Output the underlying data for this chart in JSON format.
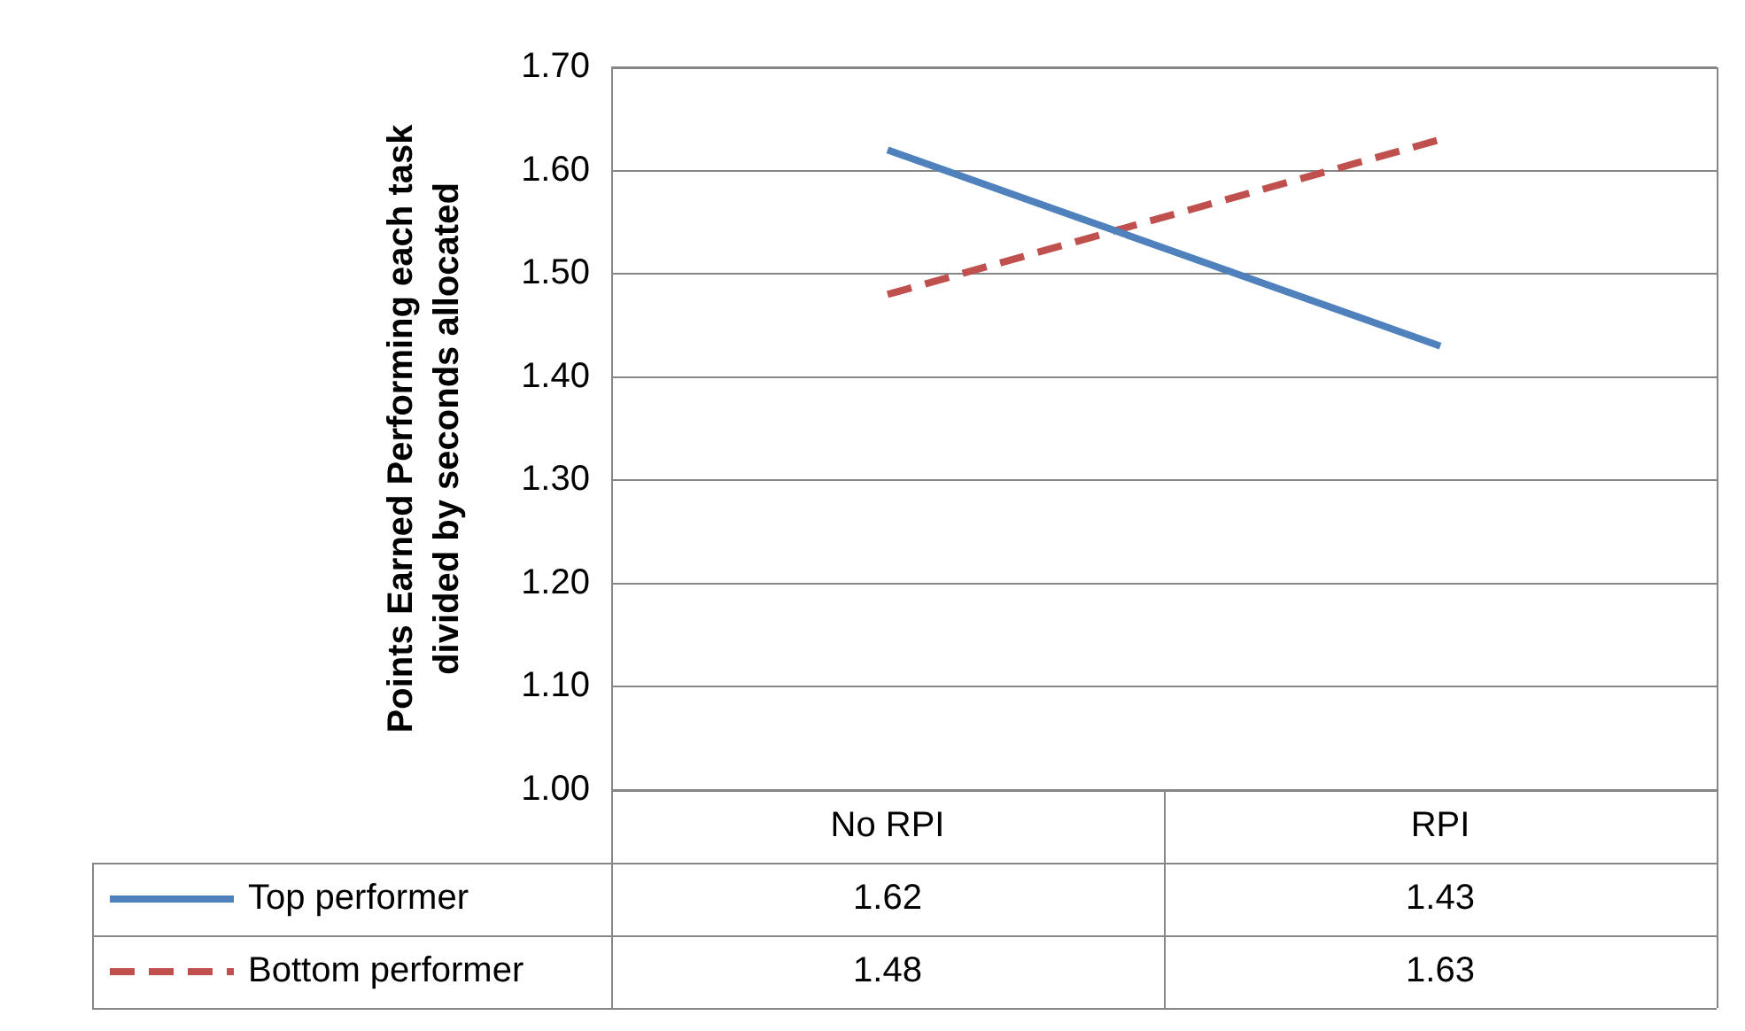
{
  "chart_data": {
    "type": "line",
    "ylabel": "Points Earned Performing each task divided by seconds allocated",
    "categories": [
      "No RPI",
      "RPI"
    ],
    "series": [
      {
        "name": "Top performer",
        "color": "#4f81bd",
        "values": [
          1.62,
          1.43
        ],
        "line_style": "solid"
      },
      {
        "name": "Bottom performer",
        "color": "#c0504d",
        "values": [
          1.48,
          1.63
        ],
        "line_style": "dashed"
      }
    ],
    "ylim": [
      1.0,
      1.7
    ],
    "yticks": [
      {
        "value": 1.0,
        "label": "1.00"
      },
      {
        "value": 1.1,
        "label": "1.10"
      },
      {
        "value": 1.2,
        "label": "1.20"
      },
      {
        "value": 1.3,
        "label": "1.30"
      },
      {
        "value": 1.4,
        "label": "1.40"
      },
      {
        "value": 1.5,
        "label": "1.50"
      },
      {
        "value": 1.6,
        "label": "1.60"
      },
      {
        "value": 1.7,
        "label": "1.70"
      }
    ],
    "grid": "y",
    "legend": "bottom",
    "data_labels": true,
    "marker": "none"
  }
}
